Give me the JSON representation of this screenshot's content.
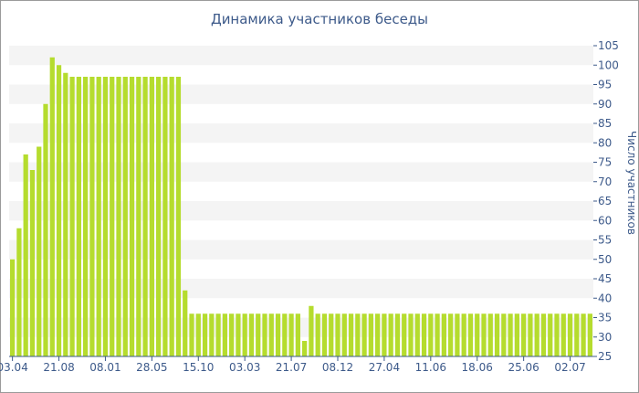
{
  "chart_data": {
    "type": "bar",
    "title": "Динамика участников беседы",
    "xlabel": "",
    "ylabel": "Число участников",
    "ylim": [
      25,
      105
    ],
    "y_ticks": [
      25,
      30,
      35,
      40,
      45,
      50,
      55,
      60,
      65,
      70,
      75,
      80,
      85,
      90,
      95,
      100,
      105
    ],
    "x_tick_labels": [
      "03.04",
      "21.08",
      "08.01",
      "28.05",
      "15.10",
      "03.03",
      "21.07",
      "08.12",
      "27.04",
      "11.06",
      "18.06",
      "25.06",
      "02.07"
    ],
    "x_tick_bar_index": [
      0,
      7,
      14,
      21,
      28,
      35,
      42,
      49,
      56,
      63,
      70,
      77,
      84
    ],
    "bar_color": "#b5dc2e",
    "grid": "horizontal bands",
    "values": [
      50,
      58,
      77,
      73,
      79,
      90,
      102,
      100,
      98,
      97,
      97,
      97,
      97,
      97,
      97,
      97,
      97,
      97,
      97,
      97,
      97,
      97,
      97,
      97,
      97,
      97,
      42,
      36,
      36,
      36,
      36,
      36,
      36,
      36,
      36,
      36,
      36,
      36,
      36,
      36,
      36,
      36,
      36,
      36,
      29,
      38,
      36,
      36,
      36,
      36,
      36,
      36,
      36,
      36,
      36,
      36,
      36,
      36,
      36,
      36,
      36,
      36,
      36,
      36,
      36,
      36,
      36,
      36,
      36,
      36,
      36,
      36,
      36,
      36,
      36,
      36,
      36,
      36,
      36,
      36,
      36,
      36,
      36,
      36,
      36,
      36,
      36,
      36
    ]
  }
}
